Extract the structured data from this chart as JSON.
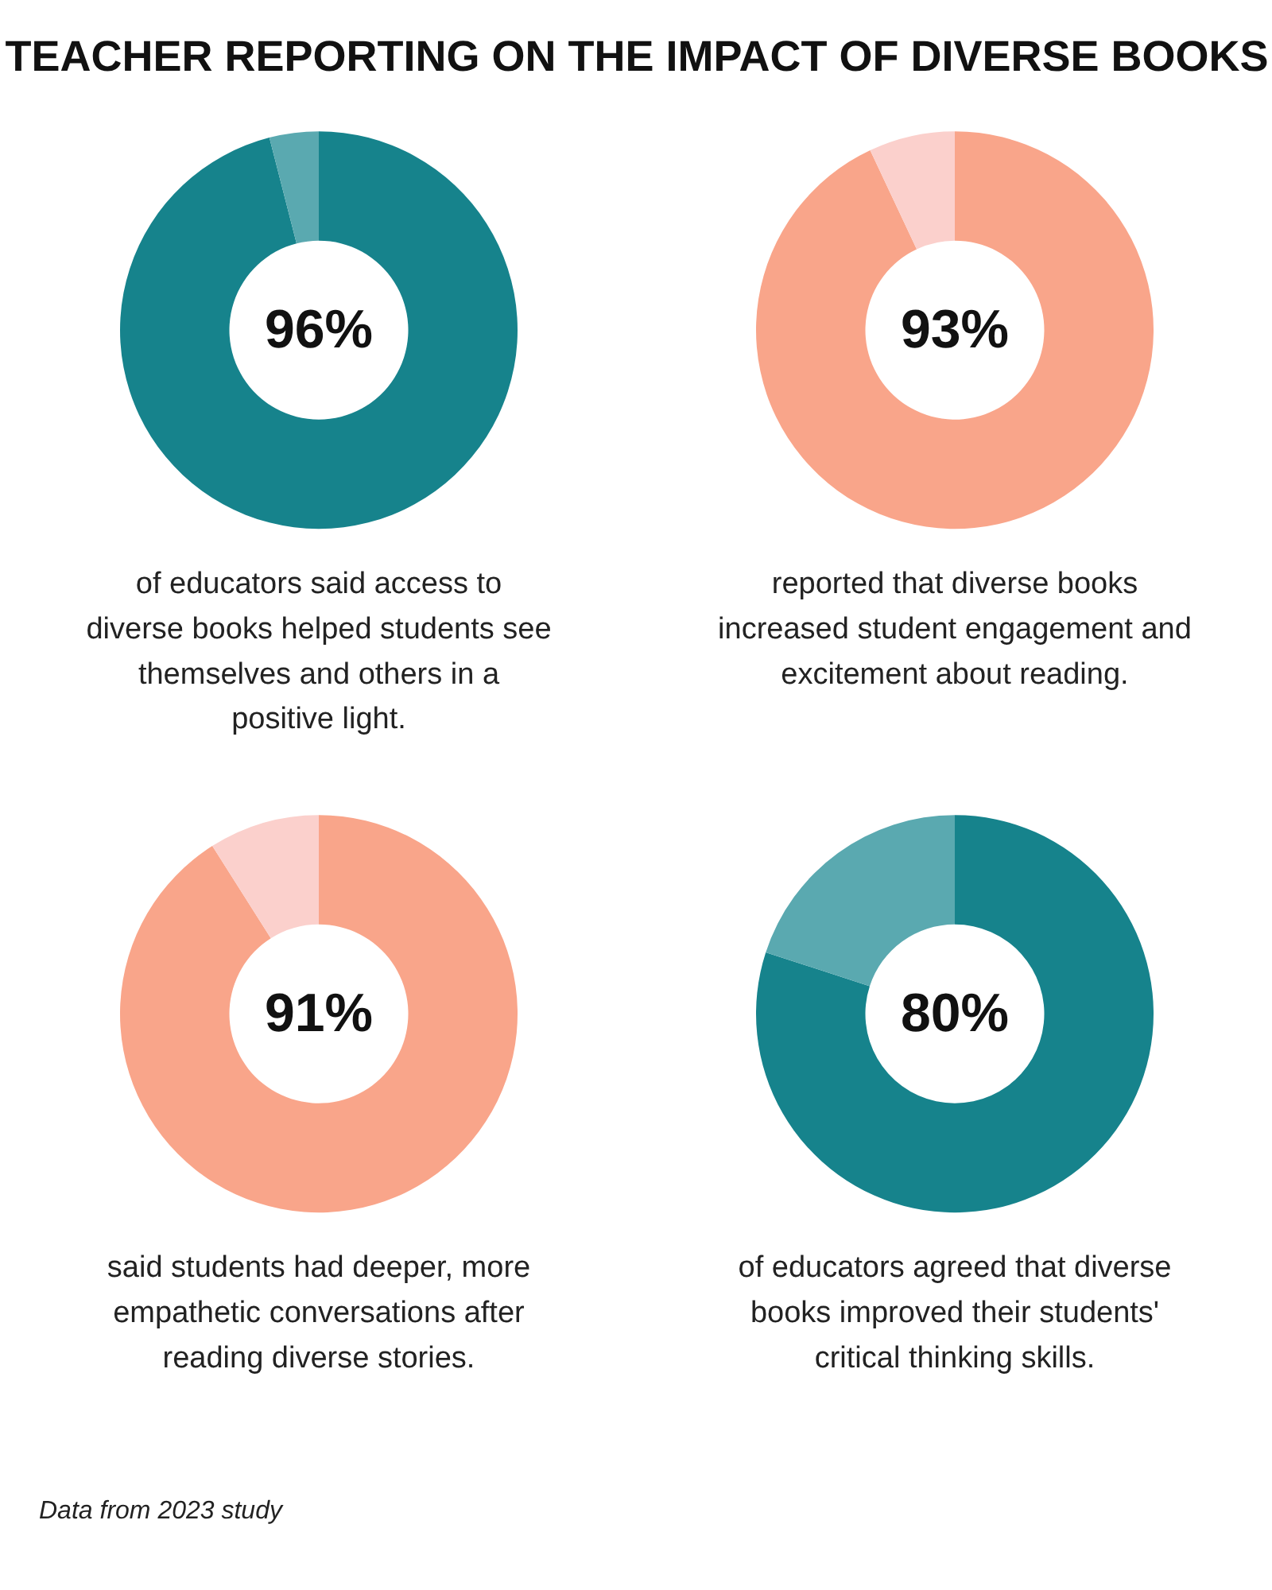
{
  "chart_data": [
    {
      "type": "donut",
      "title": "TEACHER REPORTING ON THE IMPACT OF DIVERSE BOOKS",
      "categories": [
        null,
        null
      ],
      "values": [
        96,
        4
      ],
      "colors": [
        "#16838c",
        "#5aa9b0"
      ],
      "value_labels": [
        "96%",
        null
      ],
      "annotations": [
        "of educators said access to diverse books helped students see themselves and others in a positive light."
      ]
    },
    {
      "type": "donut",
      "categories": [
        null,
        null
      ],
      "values": [
        93,
        7
      ],
      "colors": [
        "#f9a58a",
        "#fbd0cc"
      ],
      "value_labels": [
        "93%",
        null
      ],
      "annotations": [
        "reported that diverse books increased student engagement and excitement about reading."
      ]
    },
    {
      "type": "donut",
      "categories": [
        null,
        null
      ],
      "values": [
        91,
        9
      ],
      "colors": [
        "#f9a58a",
        "#fbd0cc"
      ],
      "value_labels": [
        "91%",
        null
      ],
      "annotations": [
        "said students had deeper, more empathetic conversations after reading diverse stories."
      ]
    },
    {
      "type": "donut",
      "categories": [
        null,
        null
      ],
      "values": [
        80,
        20
      ],
      "colors": [
        "#16838c",
        "#5aa9b0"
      ],
      "value_labels": [
        "80%",
        null
      ],
      "annotations": [
        "of educators agreed that diverse books improved their students' critical thinking skills.",
        "Data from 2023 study"
      ]
    }
  ]
}
